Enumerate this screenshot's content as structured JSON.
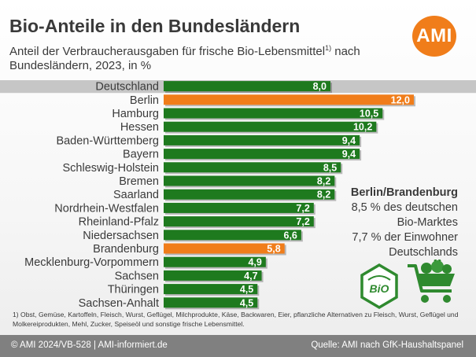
{
  "header": {
    "title": "Bio-Anteile in den Bundesländern",
    "subtitle_main": "Anteil der Verbraucherausgaben für frische Bio-Lebensmittel",
    "subtitle_sup": "1)",
    "subtitle_tail": " nach Bundesländern, 2023, in %",
    "logo_text": "AMI"
  },
  "colors": {
    "normal": "#1e7a1e",
    "highlight": "#f07d1a",
    "average_band": "#c6c6c6"
  },
  "chart_data": {
    "type": "bar",
    "orientation": "horizontal",
    "unit": "%",
    "categories": [
      "Deutschland",
      "Berlin",
      "Hamburg",
      "Hessen",
      "Baden-Württemberg",
      "Bayern",
      "Schleswig-Holstein",
      "Bremen",
      "Saarland",
      "Nordrhein-Westfalen",
      "Rheinland-Pfalz",
      "Niedersachsen",
      "Brandenburg",
      "Mecklenburg-Vorpommern",
      "Sachsen",
      "Thüringen",
      "Sachsen-Anhalt"
    ],
    "values": [
      8.0,
      12.0,
      10.5,
      10.2,
      9.4,
      9.4,
      8.5,
      8.2,
      8.2,
      7.2,
      7.2,
      6.6,
      5.8,
      4.9,
      4.7,
      4.5,
      4.5
    ],
    "value_labels": [
      "8,0",
      "12,0",
      "10,5",
      "10,2",
      "9,4",
      "9,4",
      "8,5",
      "8,2",
      "8,2",
      "7,2",
      "7,2",
      "6,6",
      "5,8",
      "4,9",
      "4,7",
      "4,5",
      "4,5"
    ],
    "highlighted": [
      "Berlin",
      "Brandenburg"
    ],
    "average_row": "Deutschland",
    "xlim": [
      0,
      12.0
    ]
  },
  "info_box": {
    "heading": "Berlin/Brandenburg",
    "line1": "8,5 % des deutschen",
    "line2": "Bio-Marktes",
    "line3": "7,7 % der Einwohner",
    "line4": "Deutschlands"
  },
  "icons": {
    "bio_seal_text": "BiO",
    "bio_seal": "bio-seal-icon",
    "cart": "shopping-cart-icon"
  },
  "footnote": "1) Obst, Gemüse, Kartoffeln, Fleisch, Wurst, Geflügel, Milchprodukte, Käse, Backwaren, Eier, pflanzliche Alternativen zu Fleisch, Wurst, Geflügel und Molkereiprodukten, Mehl, Zucker, Speiseöl und sonstige frische Lebensmittel.",
  "footer": {
    "left": "© AMI 2024/VB-528 | AMI-informiert.de",
    "right": "Quelle: AMI nach GfK-Haushaltspanel"
  }
}
